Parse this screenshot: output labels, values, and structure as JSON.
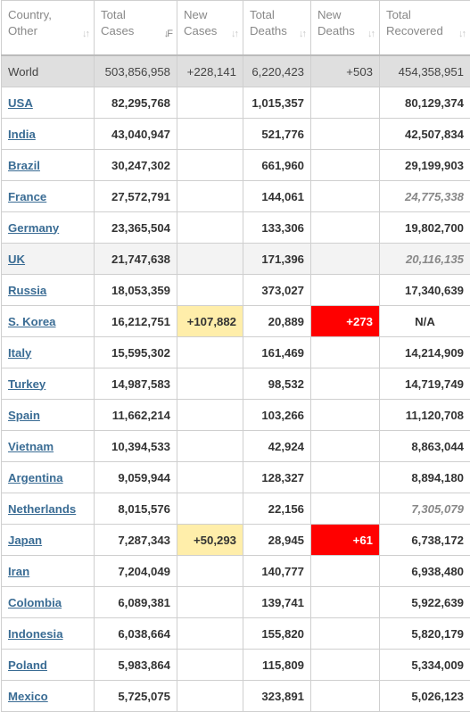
{
  "headers": {
    "country": [
      "Country,",
      "Other"
    ],
    "total_cases": [
      "Total",
      "Cases"
    ],
    "new_cases": [
      "New",
      "Cases"
    ],
    "total_deaths": [
      "Total",
      "Deaths"
    ],
    "new_deaths": [
      "New",
      "Deaths"
    ],
    "total_recovered": [
      "Total",
      "Recovered"
    ],
    "sort_icon": "sort-arrows-icon",
    "sort_active_icon": "sort-desc-active-icon"
  },
  "colors": {
    "link": "#3a6c94",
    "new_cases_highlight": "#ffeeaa",
    "new_deaths_highlight": "#ff0000",
    "world_row_bg": "#dfdfdf"
  },
  "world": {
    "country": "World",
    "total_cases": "503,856,958",
    "new_cases": "+228,141",
    "total_deaths": "6,220,423",
    "new_deaths": "+503",
    "total_recovered": "454,358,951"
  },
  "rows": [
    {
      "country": "USA",
      "total_cases": "82,295,768",
      "new_cases": "",
      "total_deaths": "1,015,357",
      "new_deaths": "",
      "total_recovered": "80,129,374"
    },
    {
      "country": "India",
      "total_cases": "43,040,947",
      "new_cases": "",
      "total_deaths": "521,776",
      "new_deaths": "",
      "total_recovered": "42,507,834"
    },
    {
      "country": "Brazil",
      "total_cases": "30,247,302",
      "new_cases": "",
      "total_deaths": "661,960",
      "new_deaths": "",
      "total_recovered": "29,199,903"
    },
    {
      "country": "France",
      "total_cases": "27,572,791",
      "new_cases": "",
      "total_deaths": "144,061",
      "new_deaths": "",
      "total_recovered": "24,775,338"
    },
    {
      "country": "Germany",
      "total_cases": "23,365,504",
      "new_cases": "",
      "total_deaths": "133,306",
      "new_deaths": "",
      "total_recovered": "19,802,700"
    },
    {
      "country": "UK",
      "total_cases": "21,747,638",
      "new_cases": "",
      "total_deaths": "171,396",
      "new_deaths": "",
      "total_recovered": "20,116,135"
    },
    {
      "country": "Russia",
      "total_cases": "18,053,359",
      "new_cases": "",
      "total_deaths": "373,027",
      "new_deaths": "",
      "total_recovered": "17,340,639"
    },
    {
      "country": "S. Korea",
      "total_cases": "16,212,751",
      "new_cases": "+107,882",
      "total_deaths": "20,889",
      "new_deaths": "+273",
      "total_recovered": "N/A"
    },
    {
      "country": "Italy",
      "total_cases": "15,595,302",
      "new_cases": "",
      "total_deaths": "161,469",
      "new_deaths": "",
      "total_recovered": "14,214,909"
    },
    {
      "country": "Turkey",
      "total_cases": "14,987,583",
      "new_cases": "",
      "total_deaths": "98,532",
      "new_deaths": "",
      "total_recovered": "14,719,749"
    },
    {
      "country": "Spain",
      "total_cases": "11,662,214",
      "new_cases": "",
      "total_deaths": "103,266",
      "new_deaths": "",
      "total_recovered": "11,120,708"
    },
    {
      "country": "Vietnam",
      "total_cases": "10,394,533",
      "new_cases": "",
      "total_deaths": "42,924",
      "new_deaths": "",
      "total_recovered": "8,863,044"
    },
    {
      "country": "Argentina",
      "total_cases": "9,059,944",
      "new_cases": "",
      "total_deaths": "128,327",
      "new_deaths": "",
      "total_recovered": "8,894,180"
    },
    {
      "country": "Netherlands",
      "total_cases": "8,015,576",
      "new_cases": "",
      "total_deaths": "22,156",
      "new_deaths": "",
      "total_recovered": "7,305,079"
    },
    {
      "country": "Japan",
      "total_cases": "7,287,343",
      "new_cases": "+50,293",
      "total_deaths": "28,945",
      "new_deaths": "+61",
      "total_recovered": "6,738,172"
    },
    {
      "country": "Iran",
      "total_cases": "7,204,049",
      "new_cases": "",
      "total_deaths": "140,777",
      "new_deaths": "",
      "total_recovered": "6,938,480"
    },
    {
      "country": "Colombia",
      "total_cases": "6,089,381",
      "new_cases": "",
      "total_deaths": "139,741",
      "new_deaths": "",
      "total_recovered": "5,922,639"
    },
    {
      "country": "Indonesia",
      "total_cases": "6,038,664",
      "new_cases": "",
      "total_deaths": "155,820",
      "new_deaths": "",
      "total_recovered": "5,820,179"
    },
    {
      "country": "Poland",
      "total_cases": "5,983,864",
      "new_cases": "",
      "total_deaths": "115,809",
      "new_deaths": "",
      "total_recovered": "5,334,009"
    },
    {
      "country": "Mexico",
      "total_cases": "5,725,075",
      "new_cases": "",
      "total_deaths": "323,891",
      "new_deaths": "",
      "total_recovered": "5,026,123"
    }
  ]
}
